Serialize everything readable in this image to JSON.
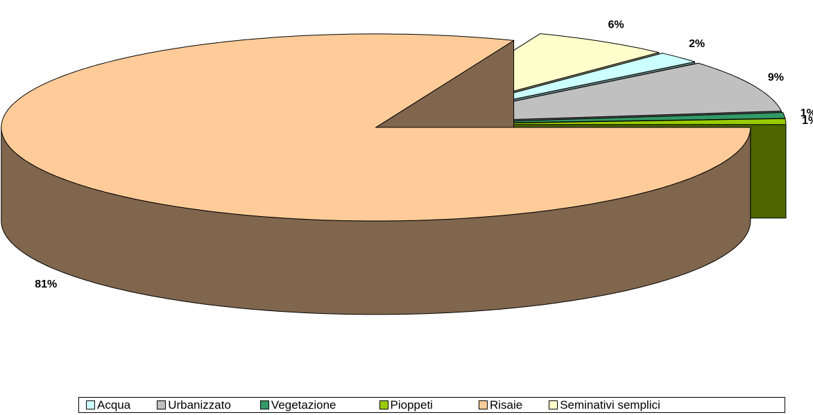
{
  "chart_data": {
    "type": "pie",
    "categories": [
      "Acqua",
      "Urbanizzato",
      "Vegetazione",
      "Pioppeti",
      "Risaie",
      "Seminativi semplici"
    ],
    "values": [
      2,
      9,
      1,
      1,
      81,
      6
    ],
    "value_labels": [
      "2%",
      "9%",
      "1%",
      "1%",
      "81%",
      "6%"
    ],
    "colors": [
      "#ccffff",
      "#c0c0c0",
      "#339966",
      "#99cc00",
      "#ffcc99",
      "#ffffcc"
    ],
    "legend": "bottom"
  }
}
